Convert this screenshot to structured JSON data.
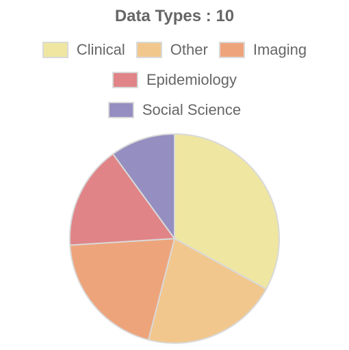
{
  "chart_data": {
    "type": "pie",
    "title": "Data Types : 10",
    "categories": [
      "Clinical",
      "Other",
      "Imaging",
      "Epidemiology",
      "Social Science"
    ],
    "values": [
      3.3,
      2.1,
      2.0,
      1.6,
      1.0
    ],
    "colors": [
      "#EFE6A1",
      "#F2C78D",
      "#EEA47B",
      "#E08487",
      "#958EC0"
    ],
    "slice_border_color": "#d9d9d9",
    "legend_position": "top"
  }
}
